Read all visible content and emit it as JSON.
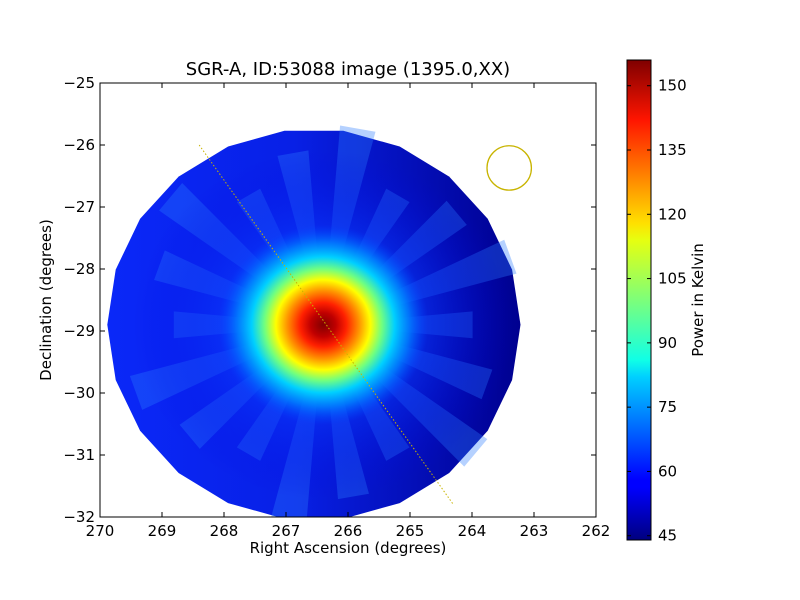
{
  "chart_data": {
    "type": "heatmap",
    "title": "SGR-A, ID:53088 image (1395.0,XX)",
    "xlabel": "Right Ascension (degrees)",
    "ylabel": "Declination (degrees)",
    "xlim": [
      270,
      262
    ],
    "ylim": [
      -32,
      -25
    ],
    "x_ticks": [
      270,
      269,
      268,
      267,
      266,
      265,
      264,
      263,
      262
    ],
    "y_ticks": [
      -25,
      -26,
      -27,
      -28,
      -29,
      -30,
      -31,
      -32
    ],
    "x_tick_labels": [
      "270",
      "269",
      "268",
      "267",
      "266",
      "265",
      "264",
      "263",
      "262"
    ],
    "y_tick_labels": [
      "−25",
      "−26",
      "−27",
      "−28",
      "−29",
      "−30",
      "−31",
      "−32"
    ],
    "colorbar": {
      "label": "Power in Kelvin",
      "range": [
        44,
        156
      ],
      "ticks": [
        45,
        60,
        75,
        90,
        105,
        120,
        135,
        150
      ],
      "tick_labels": [
        "45",
        "60",
        "75",
        "90",
        "105",
        "120",
        "135",
        "150"
      ],
      "colormap": "jet"
    },
    "footprint": {
      "center": [
        266.55,
        -28.9
      ],
      "radius_deg": 3.4
    },
    "peak": {
      "ra": 266.4,
      "dec": -28.9,
      "value": 155
    },
    "scan_line": {
      "start": [
        268.4,
        -26.0
      ],
      "end": [
        264.3,
        -31.8
      ],
      "color": "#c8b400"
    },
    "beam_circle": {
      "center": [
        263.4,
        -26.37
      ],
      "radius_deg": 0.35,
      "color": "#c8b400"
    },
    "background_level": 48
  }
}
